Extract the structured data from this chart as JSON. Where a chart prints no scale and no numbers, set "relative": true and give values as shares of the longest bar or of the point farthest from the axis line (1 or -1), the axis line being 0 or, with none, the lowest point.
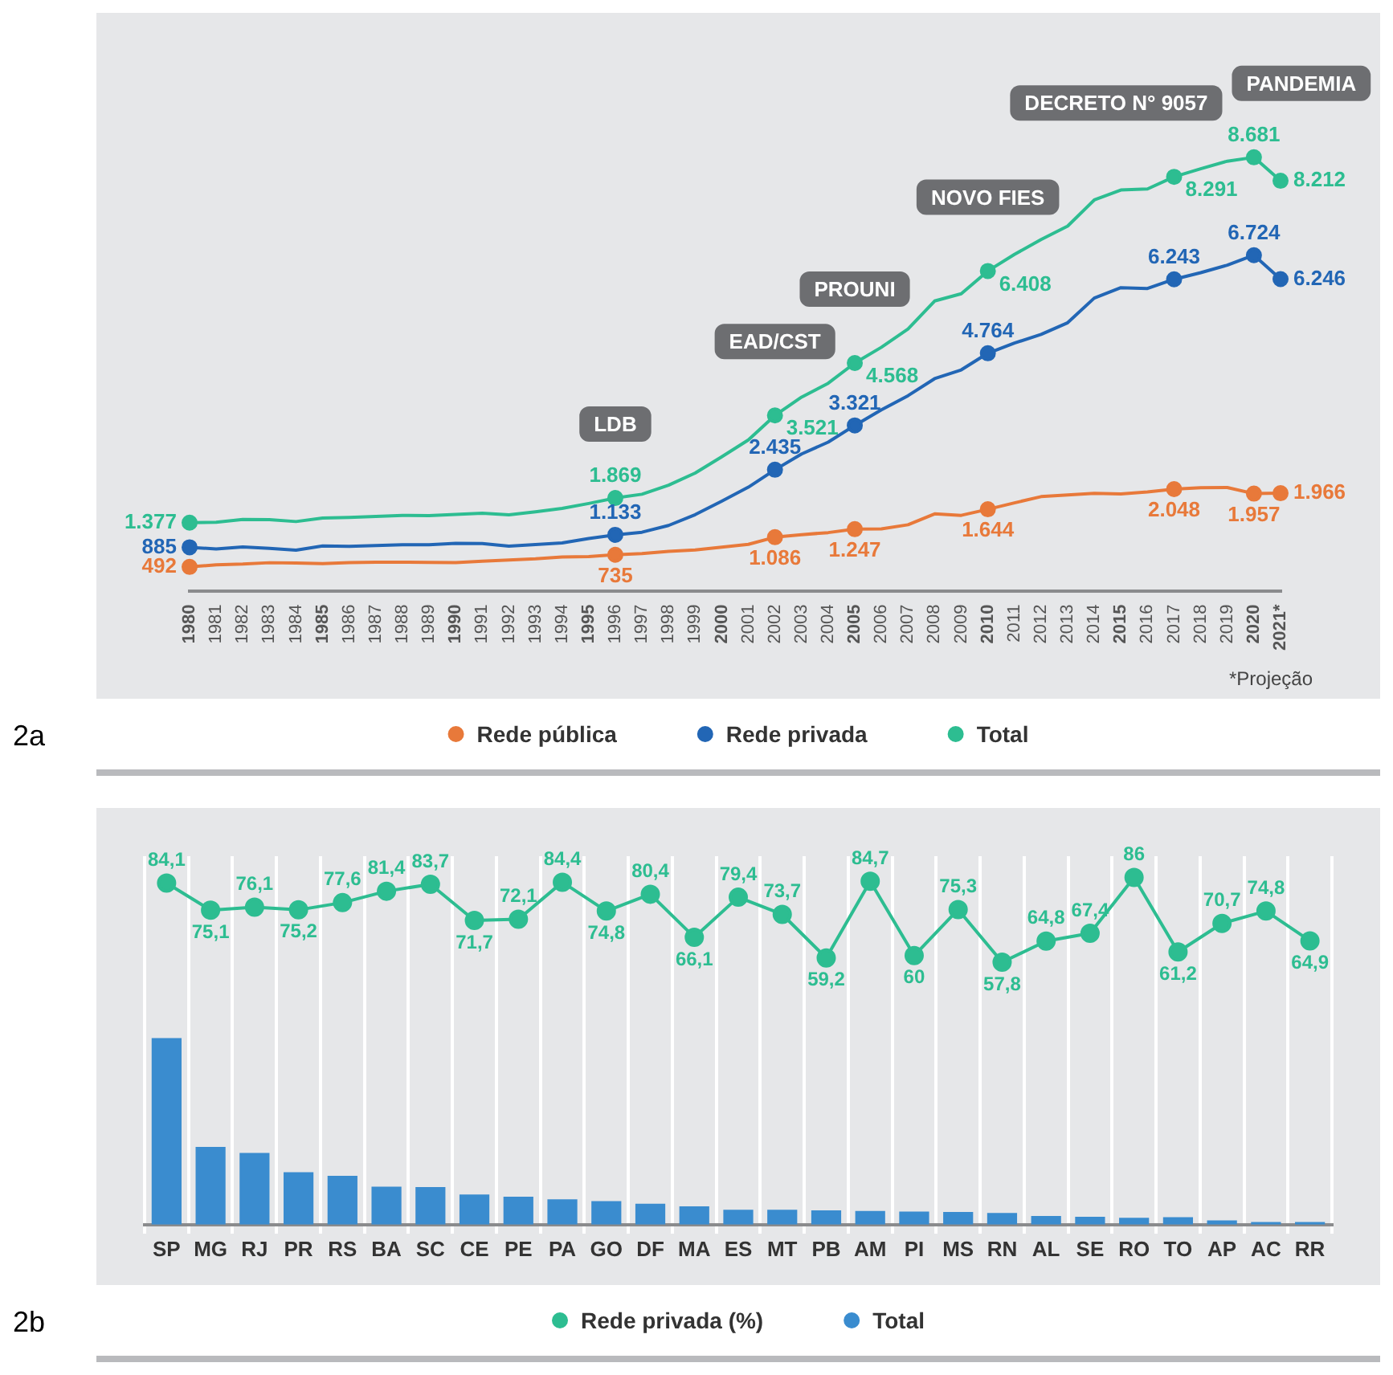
{
  "chart_data": [
    {
      "type": "line",
      "title": "2a",
      "categories": [
        "1980",
        "1981",
        "1982",
        "1983",
        "1984",
        "1985",
        "1986",
        "1987",
        "1988",
        "1989",
        "1990",
        "1991",
        "1992",
        "1993",
        "1994",
        "1995",
        "1996",
        "1997",
        "1998",
        "1999",
        "2000",
        "2001",
        "2002",
        "2003",
        "2004",
        "2005",
        "2006",
        "2007",
        "2008",
        "2009",
        "2010",
        "2011",
        "2012",
        "2013",
        "2014",
        "2015",
        "2016",
        "2017",
        "2018",
        "2019",
        "2020",
        "2021*"
      ],
      "series": [
        {
          "name": "Rede pública",
          "color": "#e8793a",
          "values": [
            492,
            535,
            549,
            576,
            571,
            556,
            577,
            585,
            585,
            584,
            578,
            606,
            629,
            653,
            690,
            700,
            735,
            759,
            804,
            832,
            887,
            944,
            1086,
            1137,
            1178,
            1247,
            1251,
            1335,
            1552,
            1523,
            1644,
            1773,
            1897,
            1932,
            1961,
            1952,
            1990,
            2048,
            2077,
            2080,
            1957,
            1966
          ],
          "value_labels": [
            "492",
            null,
            null,
            null,
            null,
            null,
            null,
            null,
            null,
            null,
            null,
            null,
            null,
            null,
            null,
            null,
            "735",
            null,
            null,
            null,
            null,
            null,
            "1.086",
            null,
            null,
            "1.247",
            null,
            null,
            null,
            null,
            "1.644",
            null,
            null,
            null,
            null,
            null,
            null,
            "2.048",
            null,
            null,
            "1.957",
            "1.966"
          ]
        },
        {
          "name": "Rede privada",
          "color": "#2266b5",
          "values": [
            885,
            851,
            891,
            862,
            828,
            912,
            905,
            918,
            935,
            934,
            962,
            959,
            906,
            941,
            971,
            1060,
            1133,
            1186,
            1321,
            1537,
            1807,
            2086,
            2435,
            2750,
            2986,
            3321,
            3632,
            3915,
            4256,
            4431,
            4764,
            4967,
            5140,
            5374,
            5867,
            6075,
            6058,
            6243,
            6374,
            6524,
            6724,
            6246
          ],
          "value_labels": [
            "885",
            null,
            null,
            null,
            null,
            null,
            null,
            null,
            null,
            null,
            null,
            null,
            null,
            null,
            null,
            null,
            "1.133",
            null,
            null,
            null,
            null,
            null,
            "2.435",
            null,
            null,
            "3.321",
            null,
            null,
            null,
            null,
            "4.764",
            null,
            null,
            null,
            null,
            null,
            null,
            "6.243",
            null,
            null,
            "6.724",
            "6.246"
          ]
        },
        {
          "name": "Total",
          "color": "#2dbd91",
          "values": [
            1377,
            1386,
            1440,
            1438,
            1399,
            1468,
            1482,
            1503,
            1520,
            1518,
            1540,
            1565,
            1535,
            1594,
            1661,
            1760,
            1869,
            1945,
            2125,
            2369,
            2694,
            3030,
            3521,
            3887,
            4164,
            4568,
            4883,
            5250,
            5808,
            5954,
            6408,
            6740,
            7037,
            7306,
            7828,
            8027,
            8048,
            8291,
            8451,
            8604,
            8681,
            8212
          ],
          "value_labels": [
            "1.377",
            null,
            null,
            null,
            null,
            null,
            null,
            null,
            null,
            null,
            null,
            null,
            null,
            null,
            null,
            null,
            "1.869",
            null,
            null,
            null,
            null,
            null,
            "3.521",
            null,
            null,
            "4.568",
            null,
            null,
            null,
            null,
            "6.408",
            null,
            null,
            null,
            null,
            null,
            null,
            "8.291",
            null,
            null,
            "8.681",
            "8.212"
          ]
        }
      ],
      "annotations": [
        {
          "text": "LDB",
          "x": "1996",
          "y": 1869
        },
        {
          "text": "EAD/CST",
          "x": "2002",
          "y": 3521
        },
        {
          "text": "PROUNI",
          "x": "2005",
          "y": 4568
        },
        {
          "text": "NOVO FIES",
          "x": "2010",
          "y": 6408
        },
        {
          "text": "DECRETO N° 9057",
          "x": "2017",
          "y": 8291
        },
        {
          "text": "PANDEMIA",
          "x": "2020",
          "y": 8681
        },
        "*Projeção"
      ],
      "legend": "bottom",
      "tick_labels": "x"
    },
    {
      "type": "line",
      "title": "2b",
      "categories": [
        null,
        null,
        null,
        null,
        null,
        null,
        null,
        null,
        null,
        null,
        null,
        null,
        null,
        null,
        null,
        null,
        null,
        null,
        null,
        null,
        null,
        null,
        null,
        null,
        null,
        null,
        null
      ],
      "grid": "x",
      "legend": "bottom",
      "marker": "circle",
      "tick_labels": false,
      "series": [
        {
          "name": "Rede privada (%)",
          "color": "#2dbd91",
          "values": [
            84.1,
            75.1,
            76.1,
            75.2,
            77.6,
            81.4,
            83.7,
            71.7,
            72.1,
            84.4,
            74.8,
            80.4,
            66.1,
            79.4,
            73.7,
            59.2,
            84.7,
            60,
            75.3,
            57.8,
            64.8,
            67.4,
            86,
            61.2,
            70.7,
            74.8,
            64.9
          ],
          "value_labels": [
            "84,1",
            "75,1",
            "76,1",
            "75,2",
            "77,6",
            "81,4",
            "83,7",
            "71,7",
            "72,1",
            "84,4",
            "74,8",
            "80,4",
            "66,1",
            "79,4",
            "73,7",
            "59,2",
            "84,7",
            "60",
            "75,3",
            "57,8",
            "64,8",
            "67,4",
            "86",
            "61,2",
            "70,7",
            "74,8",
            "64,9"
          ]
        }
      ]
    },
    {
      "type": "bar",
      "categories": [
        "SP",
        "MG",
        "RJ",
        "PR",
        "RS",
        "BA",
        "SC",
        "CE",
        "PE",
        "PA",
        "GO",
        "DF",
        "MA",
        "ES",
        "MT",
        "PB",
        "AM",
        "PI",
        "MS",
        "RN",
        "AL",
        "SE",
        "RO",
        "TO",
        "AP",
        "AC",
        "RR"
      ],
      "relative": true,
      "legend": "bottom",
      "series": [
        {
          "name": "Total",
          "color": "#3a8ccf",
          "values": [
            1,
            0.417,
            0.384,
            0.281,
            0.262,
            0.204,
            0.201,
            0.162,
            0.15,
            0.136,
            0.126,
            0.112,
            0.098,
            0.08,
            0.08,
            0.077,
            0.073,
            0.07,
            0.068,
            0.063,
            0.047,
            0.042,
            0.037,
            0.04,
            0.023,
            0.014,
            0.014
          ]
        }
      ]
    }
  ]
}
